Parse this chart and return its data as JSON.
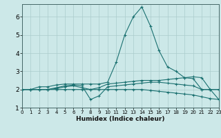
{
  "xlabel": "Humidex (Indice chaleur)",
  "background_color": "#cce8e8",
  "grid_color": "#aacccc",
  "line_color": "#1a7070",
  "x_min": 0,
  "x_max": 23,
  "y_min": 1,
  "y_max": 6.7,
  "x_ticks": [
    0,
    1,
    2,
    3,
    4,
    5,
    6,
    7,
    8,
    9,
    10,
    11,
    12,
    13,
    14,
    15,
    16,
    17,
    18,
    19,
    20,
    21,
    22,
    23
  ],
  "y_ticks": [
    1,
    2,
    3,
    4,
    5,
    6
  ],
  "series": [
    {
      "x": [
        0,
        1,
        2,
        3,
        4,
        5,
        6,
        7,
        8,
        9,
        10,
        11,
        12,
        13,
        14,
        15,
        16,
        17,
        18,
        19,
        20,
        21,
        22,
        23
      ],
      "y": [
        2.0,
        2.0,
        2.0,
        2.0,
        2.05,
        2.15,
        2.2,
        2.1,
        2.0,
        2.1,
        2.3,
        2.35,
        2.4,
        2.45,
        2.5,
        2.5,
        2.5,
        2.55,
        2.6,
        2.65,
        2.7,
        2.65,
        2.0,
        2.0
      ]
    },
    {
      "x": [
        0,
        1,
        2,
        3,
        4,
        5,
        6,
        7,
        8,
        9,
        10,
        11,
        12,
        13,
        14,
        15,
        16,
        17,
        18,
        19,
        20,
        21,
        22,
        23
      ],
      "y": [
        2.0,
        2.0,
        2.0,
        2.0,
        2.1,
        2.2,
        2.25,
        2.2,
        1.45,
        1.65,
        2.15,
        2.2,
        2.25,
        2.3,
        2.35,
        2.4,
        2.4,
        2.35,
        2.3,
        2.25,
        2.2,
        2.0,
        2.0,
        1.45
      ]
    },
    {
      "x": [
        0,
        1,
        2,
        3,
        4,
        5,
        6,
        7,
        8,
        9,
        10,
        11,
        12,
        13,
        14,
        15,
        16,
        17,
        18,
        19,
        20,
        21,
        22,
        23
      ],
      "y": [
        2.0,
        2.0,
        2.15,
        2.15,
        2.25,
        2.3,
        2.3,
        2.3,
        2.3,
        2.3,
        2.4,
        3.5,
        5.0,
        6.0,
        6.55,
        5.5,
        4.15,
        3.25,
        3.0,
        2.65,
        2.6,
        2.0,
        2.0,
        2.0
      ]
    },
    {
      "x": [
        0,
        1,
        2,
        3,
        4,
        5,
        6,
        7,
        8,
        9,
        10,
        11,
        12,
        13,
        14,
        15,
        16,
        17,
        18,
        19,
        20,
        21,
        22,
        23
      ],
      "y": [
        2.0,
        2.0,
        2.0,
        2.0,
        2.0,
        2.0,
        2.0,
        2.0,
        2.0,
        2.0,
        2.0,
        2.0,
        2.0,
        2.0,
        2.0,
        1.95,
        1.9,
        1.85,
        1.8,
        1.75,
        1.7,
        1.6,
        1.5,
        1.45
      ]
    }
  ]
}
